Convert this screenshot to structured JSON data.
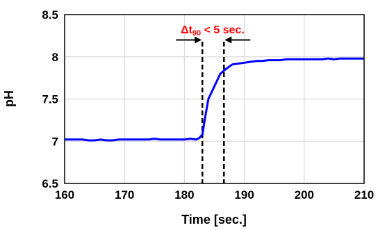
{
  "chart_data": {
    "type": "line",
    "xlabel": "Time [sec.]",
    "ylabel": "pH",
    "xlim": [
      160,
      210
    ],
    "ylim": [
      6.5,
      8.5
    ],
    "x_ticks": [
      160,
      170,
      180,
      190,
      200,
      210
    ],
    "x_tick_labels": [
      "160",
      "170",
      "180",
      "190",
      "200",
      "210"
    ],
    "y_ticks": [
      6.5,
      7,
      7.5,
      8,
      8.5
    ],
    "y_tick_labels": [
      "6.5",
      "7",
      "7.5",
      "8",
      "8.5"
    ],
    "grid": true,
    "series": [
      {
        "color": "#0000ff",
        "x": [
          160,
          161,
          162,
          163,
          164,
          165,
          166,
          167,
          168,
          169,
          170,
          171,
          172,
          173,
          174,
          175,
          176,
          177,
          178,
          179,
          180,
          181,
          182,
          182.5,
          183,
          183.5,
          184,
          185,
          186,
          187,
          188,
          189,
          190,
          191,
          192,
          193,
          194,
          195,
          196,
          197,
          198,
          199,
          200,
          201,
          202,
          203,
          204,
          205,
          206,
          207,
          208,
          209,
          210
        ],
        "y": [
          7.02,
          7.02,
          7.02,
          7.02,
          7.01,
          7.01,
          7.02,
          7.01,
          7.01,
          7.02,
          7.02,
          7.02,
          7.02,
          7.02,
          7.02,
          7.03,
          7.02,
          7.02,
          7.02,
          7.02,
          7.02,
          7.03,
          7.02,
          7.04,
          7.08,
          7.3,
          7.5,
          7.65,
          7.8,
          7.86,
          7.91,
          7.92,
          7.93,
          7.94,
          7.95,
          7.95,
          7.96,
          7.96,
          7.96,
          7.97,
          7.97,
          7.97,
          7.97,
          7.97,
          7.97,
          7.97,
          7.98,
          7.97,
          7.98,
          7.98,
          7.98,
          7.98,
          7.98
        ]
      }
    ],
    "annotations": {
      "label_main": "Δt",
      "label_sub": "90",
      "label_rest": " < 5 sec.",
      "color": "#ff0000",
      "markers_x": [
        183,
        186.6
      ],
      "arrow_y": 8.2
    }
  }
}
